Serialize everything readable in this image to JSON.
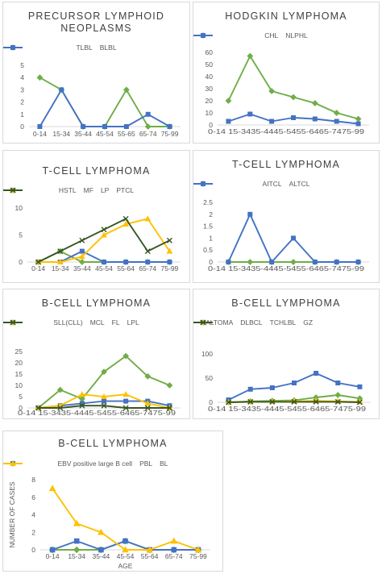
{
  "axis_titles": {
    "y": "NUMBER OF CASES",
    "x": "AGE"
  },
  "chart_data": [
    {
      "id": "precursor",
      "type": "line",
      "title": [
        "PRECURSOR LYMPHOID",
        "NEOPLASMS"
      ],
      "categories": [
        "0-14",
        "15-34",
        "35-44",
        "45-54",
        "55-65",
        "65-74",
        "75-99"
      ],
      "ylim": [
        0,
        5
      ],
      "yticks": [
        0,
        1,
        2,
        3,
        4,
        5
      ],
      "legend_position": "top",
      "series": [
        {
          "name": "TLBL",
          "color": "#70ad47",
          "marker": "diamond",
          "values": [
            4,
            3,
            0,
            0,
            3,
            0,
            0
          ]
        },
        {
          "name": "BLBL",
          "color": "#4472c4",
          "marker": "square",
          "values": [
            0,
            3,
            0,
            0,
            0,
            1,
            0
          ]
        }
      ]
    },
    {
      "id": "hodgkin",
      "type": "line",
      "title": [
        "HODGKIN LYMPHOMA"
      ],
      "categories": [
        "0-14",
        "15-34",
        "35-44",
        "45-54",
        "55-64",
        "65-74",
        "75-99"
      ],
      "tick_text": "0-14 15-3435-4445-5455-6465-7475-99",
      "ylim": [
        0,
        60
      ],
      "yticks": [
        0,
        10,
        20,
        30,
        40,
        50,
        60
      ],
      "legend_position": "top",
      "series": [
        {
          "name": "CHL",
          "color": "#70ad47",
          "marker": "diamond",
          "values": [
            20,
            57,
            28,
            23,
            18,
            10,
            5
          ]
        },
        {
          "name": "NLPHL",
          "color": "#4472c4",
          "marker": "square",
          "values": [
            3,
            9,
            3,
            6,
            5,
            3,
            1
          ]
        }
      ]
    },
    {
      "id": "tcell1",
      "type": "line",
      "title": [
        "T-CELL LYMPHOMA"
      ],
      "categories": [
        "0-14",
        "15-34",
        "35-44",
        "45-54",
        "55-64",
        "65-74",
        "75-99"
      ],
      "ylim": [
        0,
        10
      ],
      "yticks": [
        0,
        5,
        10
      ],
      "legend_position": "top",
      "series": [
        {
          "name": "HSTL",
          "color": "#70ad47",
          "marker": "diamond",
          "values": [
            0,
            2,
            0,
            0,
            0,
            0,
            0
          ]
        },
        {
          "name": "MF",
          "color": "#4472c4",
          "marker": "square",
          "values": [
            0,
            0,
            2,
            0,
            0,
            0,
            0
          ]
        },
        {
          "name": "LP",
          "color": "#ffc000",
          "marker": "triangle",
          "values": [
            0,
            0,
            1,
            5,
            7,
            8,
            2
          ]
        },
        {
          "name": "PTCL",
          "color": "#375623",
          "marker": "x",
          "values": [
            0,
            2,
            4,
            6,
            8,
            2,
            4
          ]
        }
      ]
    },
    {
      "id": "tcell2",
      "type": "line",
      "title": [
        "T-CELL LYMPHOMA"
      ],
      "categories": [
        "0-14",
        "15-34",
        "35-44",
        "45-54",
        "55-64",
        "65-74",
        "75-99"
      ],
      "tick_text": "0-14 15-3435-4445-5455-6465-7475-99",
      "ylim": [
        0,
        2.5
      ],
      "yticks": [
        0,
        0.5,
        1,
        1.5,
        2,
        2.5
      ],
      "legend_position": "top",
      "series": [
        {
          "name": "AITCL",
          "color": "#70ad47",
          "marker": "diamond",
          "values": [
            0,
            0,
            0,
            0,
            0,
            0,
            0
          ]
        },
        {
          "name": "ALTCL",
          "color": "#4472c4",
          "marker": "square",
          "values": [
            0,
            2,
            0,
            1,
            0,
            0,
            0
          ]
        }
      ]
    },
    {
      "id": "bcell1",
      "type": "line",
      "title": [
        "B-CELL LYMPHOMA"
      ],
      "categories": [
        "0-14",
        "15-34",
        "35-44",
        "45-54",
        "55-64",
        "65-74",
        "75-99"
      ],
      "tick_text": "0-14 15-3435-4445-5455-6465-7475-99",
      "ylim": [
        0,
        25
      ],
      "yticks": [
        0,
        5,
        10,
        15,
        20,
        25
      ],
      "legend_position": "top",
      "series": [
        {
          "name": "SLL(CLL)",
          "color": "#70ad47",
          "marker": "diamond",
          "values": [
            0,
            8,
            4,
            16,
            23,
            14,
            10
          ]
        },
        {
          "name": "MCL",
          "color": "#4472c4",
          "marker": "square",
          "values": [
            0,
            1,
            2,
            3,
            3,
            3,
            1
          ]
        },
        {
          "name": "FL",
          "color": "#ffc000",
          "marker": "triangle",
          "values": [
            0,
            1,
            6,
            5,
            6,
            2,
            0
          ]
        },
        {
          "name": "LPL",
          "color": "#375623",
          "marker": "x",
          "values": [
            0,
            0,
            1,
            1,
            0,
            0,
            0
          ]
        }
      ]
    },
    {
      "id": "bcell2",
      "type": "line",
      "title": [
        "B-CELL LYMPHOMA"
      ],
      "categories": [
        "0-14",
        "15-34",
        "35-44",
        "45-54",
        "55-64",
        "65-74",
        "75-99"
      ],
      "tick_text": "0-14 15-3435-4445-5455-6465-7475-99",
      "ylim": [
        0,
        100
      ],
      "yticks": [
        0,
        50,
        100
      ],
      "legend_position": "top",
      "series": [
        {
          "name": "MALTOMA",
          "color": "#70ad47",
          "marker": "diamond",
          "values": [
            0,
            2,
            3,
            4,
            10,
            15,
            8
          ]
        },
        {
          "name": "DLBCL",
          "color": "#4472c4",
          "marker": "square",
          "values": [
            5,
            27,
            30,
            40,
            60,
            40,
            32
          ]
        },
        {
          "name": "TCHLBL",
          "color": "#ffc000",
          "marker": "triangle",
          "values": [
            0,
            1,
            1,
            2,
            3,
            2,
            1
          ]
        },
        {
          "name": "GZ",
          "color": "#375623",
          "marker": "x",
          "values": [
            0,
            1,
            1,
            1,
            1,
            1,
            0
          ]
        }
      ]
    },
    {
      "id": "bcell3",
      "type": "line",
      "title": [
        "B-CELL LYMPHOMA"
      ],
      "categories": [
        "0-14",
        "15-34",
        "35-44",
        "45-54",
        "55-64",
        "65-74",
        "75-99"
      ],
      "ylim": [
        0,
        8
      ],
      "yticks": [
        0,
        2,
        4,
        6,
        8
      ],
      "ylabel": "NUMBER OF CASES",
      "xlabel": "AGE",
      "legend_position": "top",
      "series": [
        {
          "name": "EBV positive large B cell",
          "color": "#70ad47",
          "marker": "diamond",
          "values": [
            0,
            0,
            0,
            1,
            0,
            0,
            0
          ]
        },
        {
          "name": "PBL",
          "color": "#4472c4",
          "marker": "square",
          "values": [
            0,
            1,
            0,
            1,
            0,
            0,
            0
          ]
        },
        {
          "name": "BL",
          "color": "#ffc000",
          "marker": "triangle",
          "values": [
            7,
            3,
            2,
            0,
            0,
            1,
            0
          ]
        }
      ]
    }
  ]
}
